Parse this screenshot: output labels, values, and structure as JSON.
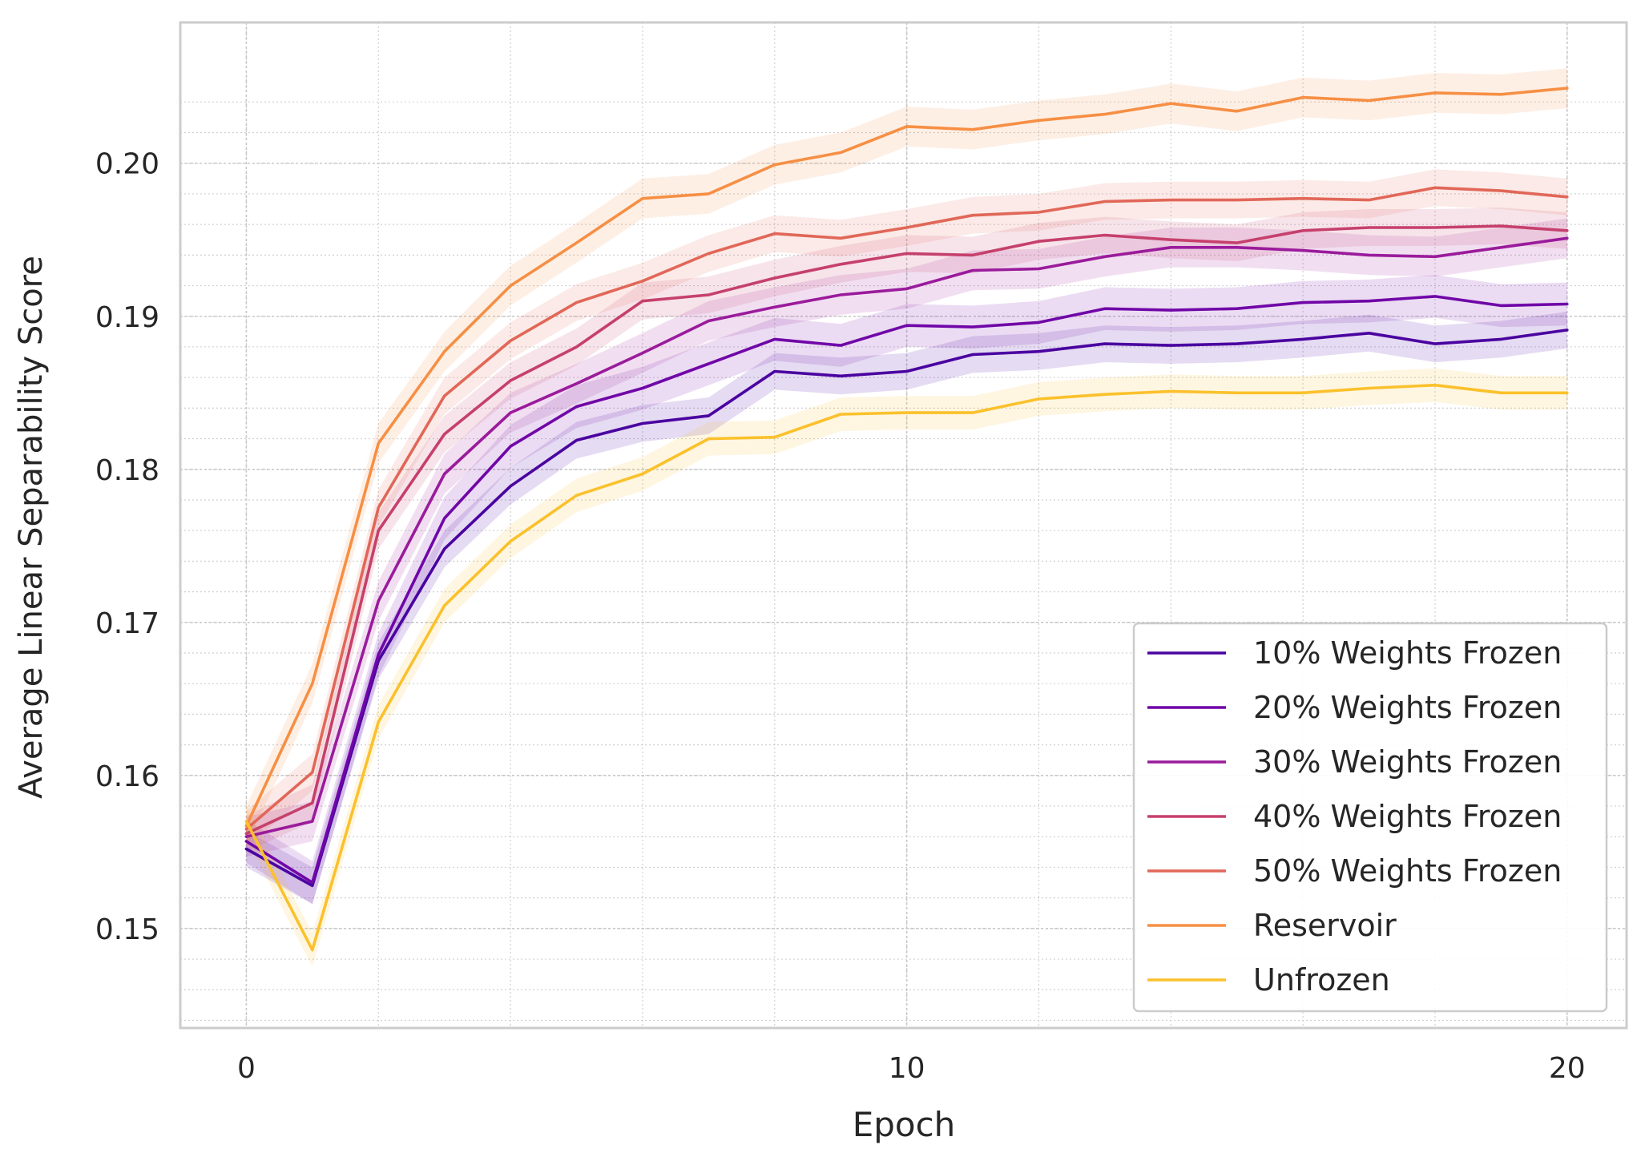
{
  "chart_data": {
    "type": "line",
    "title": "",
    "xlabel": "Epoch",
    "ylabel": "Average Linear Separability Score",
    "xlim": [
      -1,
      20.9
    ],
    "ylim": [
      0.1435,
      0.2092
    ],
    "xticks": [
      0,
      10,
      20
    ],
    "xtick_labels": [
      "0",
      "10",
      "20"
    ],
    "yticks": [
      0.15,
      0.16,
      0.17,
      0.18,
      0.19,
      0.2
    ],
    "ytick_labels": [
      "0.15",
      "0.16",
      "0.17",
      "0.18",
      "0.19",
      "0.20"
    ],
    "grid": true,
    "legend_position": "lower-right",
    "x": [
      0,
      1,
      2,
      3,
      4,
      5,
      6,
      7,
      8,
      9,
      10,
      11,
      12,
      13,
      14,
      15,
      16,
      17,
      18,
      19,
      20
    ],
    "series": [
      {
        "name": "10% Weights Frozen",
        "color": "#4a03a0",
        "values": [
          0.1552,
          0.1528,
          0.1675,
          0.1748,
          0.1789,
          0.1819,
          0.183,
          0.1835,
          0.1864,
          0.1861,
          0.1864,
          0.1875,
          0.1877,
          0.1882,
          0.1881,
          0.1882,
          0.1885,
          0.1889,
          0.1882,
          0.1885,
          0.1891
        ],
        "ci": 0.0012
      },
      {
        "name": "20% Weights Frozen",
        "color": "#7006a7",
        "values": [
          0.1557,
          0.153,
          0.1679,
          0.1768,
          0.1815,
          0.1841,
          0.1853,
          0.1869,
          0.1885,
          0.1881,
          0.1894,
          0.1893,
          0.1896,
          0.1905,
          0.1904,
          0.1905,
          0.1909,
          0.191,
          0.1913,
          0.1907,
          0.1908
        ],
        "ci": 0.0014
      },
      {
        "name": "30% Weights Frozen",
        "color": "#9a1b9b",
        "values": [
          0.156,
          0.157,
          0.1714,
          0.1797,
          0.1837,
          0.1856,
          0.1876,
          0.1897,
          0.1906,
          0.1914,
          0.1918,
          0.193,
          0.1931,
          0.1939,
          0.1945,
          0.1945,
          0.1943,
          0.194,
          0.1939,
          0.1945,
          0.1951
        ],
        "ci": 0.0013
      },
      {
        "name": "40% Weights Frozen",
        "color": "#c6406c",
        "values": [
          0.1562,
          0.1582,
          0.176,
          0.1823,
          0.1858,
          0.188,
          0.191,
          0.1914,
          0.1925,
          0.1934,
          0.1941,
          0.194,
          0.1949,
          0.1953,
          0.195,
          0.1948,
          0.1956,
          0.1958,
          0.1958,
          0.1959,
          0.1956
        ],
        "ci": 0.0012
      },
      {
        "name": "50% Weights Frozen",
        "color": "#e16758",
        "values": [
          0.1565,
          0.1602,
          0.1775,
          0.1848,
          0.1884,
          0.1909,
          0.1923,
          0.1941,
          0.1954,
          0.1951,
          0.1958,
          0.1966,
          0.1968,
          0.1975,
          0.1976,
          0.1976,
          0.1977,
          0.1976,
          0.1984,
          0.1982,
          0.1978
        ],
        "ci": 0.0012
      },
      {
        "name": "Reservoir",
        "color": "#f68f44",
        "values": [
          0.1567,
          0.166,
          0.1817,
          0.1877,
          0.192,
          0.1948,
          0.1977,
          0.198,
          0.1999,
          0.2007,
          0.2024,
          0.2022,
          0.2028,
          0.2032,
          0.2039,
          0.2034,
          0.2043,
          0.2041,
          0.2046,
          0.2045,
          0.2049
        ],
        "ci": 0.0013
      },
      {
        "name": "Unfrozen",
        "color": "#fbc12c",
        "values": [
          0.157,
          0.1486,
          0.1635,
          0.1711,
          0.1753,
          0.1783,
          0.1797,
          0.182,
          0.1821,
          0.1836,
          0.1837,
          0.1837,
          0.1846,
          0.1849,
          0.1851,
          0.185,
          0.185,
          0.1853,
          0.1855,
          0.185,
          0.185
        ],
        "ci": 0.0011
      }
    ]
  }
}
